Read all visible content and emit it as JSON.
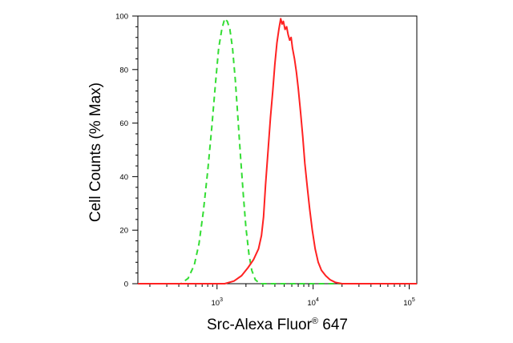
{
  "chart_data": {
    "type": "line",
    "title": "",
    "xlabel": "Src-Alexa Fluor",
    "xlabel_superscript": "®",
    "xlabel_suffix": " 647",
    "ylabel": "Cell Counts (% Max)",
    "xscale": "log",
    "xlim": [
      150,
      120000
    ],
    "ylim": [
      0,
      100
    ],
    "y_ticks": [
      0,
      20,
      40,
      60,
      80,
      100
    ],
    "y_tick_labels": [
      "0",
      "20",
      "40",
      "60",
      "80",
      "100"
    ],
    "x_ticks": [
      1000,
      10000,
      100000
    ],
    "x_tick_labels": [
      {
        "base": "10",
        "exp": "3"
      },
      {
        "base": "10",
        "exp": "4"
      },
      {
        "base": "10",
        "exp": "5"
      }
    ],
    "grid": false,
    "legend": "none",
    "series": [
      {
        "color": "#33dd33",
        "line_style": "dashed",
        "points": [
          [
            150,
            0
          ],
          [
            420,
            0
          ],
          [
            500,
            2
          ],
          [
            580,
            7
          ],
          [
            650,
            15
          ],
          [
            720,
            27
          ],
          [
            800,
            42
          ],
          [
            880,
            58
          ],
          [
            960,
            74
          ],
          [
            1040,
            88
          ],
          [
            1120,
            95
          ],
          [
            1200,
            99
          ],
          [
            1280,
            98
          ],
          [
            1360,
            95
          ],
          [
            1450,
            88
          ],
          [
            1550,
            76
          ],
          [
            1650,
            62
          ],
          [
            1760,
            47
          ],
          [
            1880,
            33
          ],
          [
            2000,
            21
          ],
          [
            2150,
            11
          ],
          [
            2300,
            5
          ],
          [
            2500,
            1.5
          ],
          [
            2800,
            0
          ],
          [
            120000,
            0
          ]
        ]
      },
      {
        "color": "#ff2222",
        "line_style": "solid",
        "points": [
          [
            150,
            0
          ],
          [
            1200,
            0
          ],
          [
            1500,
            1
          ],
          [
            1800,
            3
          ],
          [
            2100,
            6
          ],
          [
            2400,
            9
          ],
          [
            2700,
            13
          ],
          [
            2900,
            18
          ],
          [
            3050,
            25
          ],
          [
            3200,
            37
          ],
          [
            3400,
            50
          ],
          [
            3600,
            62
          ],
          [
            3800,
            72
          ],
          [
            4000,
            82
          ],
          [
            4200,
            90
          ],
          [
            4400,
            95
          ],
          [
            4600,
            99
          ],
          [
            4750,
            97
          ],
          [
            4900,
            98
          ],
          [
            5100,
            95
          ],
          [
            5300,
            96
          ],
          [
            5500,
            93
          ],
          [
            5700,
            91
          ],
          [
            5900,
            92
          ],
          [
            6100,
            88
          ],
          [
            6400,
            84
          ],
          [
            6700,
            79
          ],
          [
            7000,
            73
          ],
          [
            7400,
            64
          ],
          [
            7800,
            55
          ],
          [
            8200,
            45
          ],
          [
            8700,
            36
          ],
          [
            9200,
            28
          ],
          [
            9800,
            20
          ],
          [
            10500,
            13
          ],
          [
            11300,
            8
          ],
          [
            12200,
            5
          ],
          [
            13500,
            3
          ],
          [
            15000,
            1.5
          ],
          [
            17000,
            0.5
          ],
          [
            20000,
            0
          ],
          [
            120000,
            0
          ]
        ]
      }
    ]
  }
}
